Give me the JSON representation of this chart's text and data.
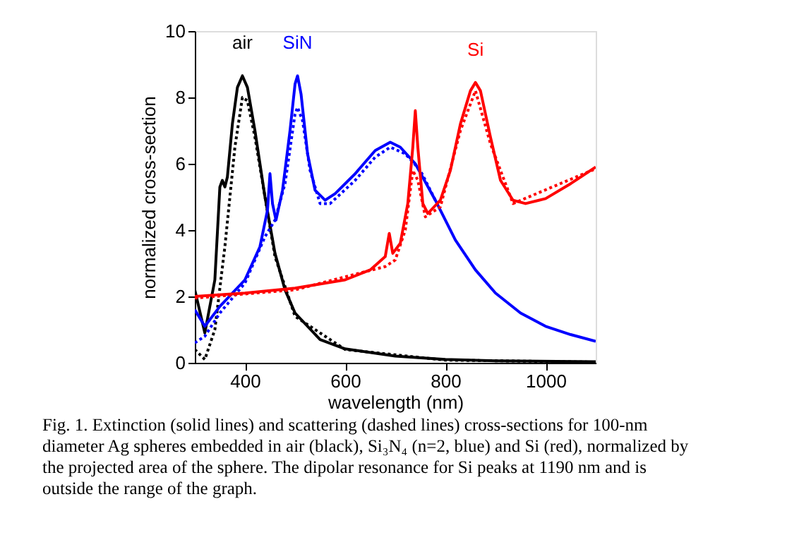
{
  "chart_data": {
    "type": "line",
    "xlabel": "wavelength (nm)",
    "ylabel": "normalized cross-section",
    "xlim": [
      300,
      1100
    ],
    "ylim": [
      0,
      10
    ],
    "xticks": [
      400,
      600,
      800,
      1000
    ],
    "yticks": [
      0,
      2,
      4,
      6,
      8,
      10
    ],
    "grid": false,
    "marker": "none",
    "series": [
      {
        "name": "air",
        "color": "#000000",
        "line_style": "solid",
        "x": [
          300,
          320,
          340,
          350,
          355,
          360,
          365,
          375,
          385,
          395,
          405,
          420,
          440,
          460,
          480,
          500,
          550,
          600,
          700,
          800,
          900,
          1100
        ],
        "values": [
          2.2,
          0.9,
          2.5,
          5.3,
          5.5,
          5.3,
          5.6,
          7.2,
          8.3,
          8.65,
          8.3,
          7.0,
          5.0,
          3.3,
          2.2,
          1.5,
          0.7,
          0.42,
          0.2,
          0.1,
          0.06,
          0.03
        ]
      },
      {
        "color": "#000000",
        "line_style": "dotted",
        "x": [
          300,
          320,
          340,
          360,
          380,
          395,
          405,
          420,
          440,
          460,
          500,
          600,
          800,
          1100
        ],
        "values": [
          0.4,
          0.1,
          1.0,
          3.5,
          6.5,
          8.0,
          7.9,
          6.8,
          5.0,
          3.2,
          1.4,
          0.4,
          0.08,
          0.02
        ]
      },
      {
        "name": "SiN",
        "color": "#0000ff",
        "line_style": "solid",
        "x": [
          300,
          320,
          350,
          400,
          430,
          445,
          450,
          455,
          462,
          475,
          490,
          500,
          505,
          512,
          525,
          540,
          560,
          580,
          620,
          660,
          690,
          710,
          740,
          780,
          820,
          860,
          900,
          950,
          1000,
          1050,
          1100
        ],
        "values": [
          1.6,
          1.1,
          1.7,
          2.5,
          3.5,
          4.6,
          5.7,
          4.8,
          4.3,
          5.2,
          7.0,
          8.4,
          8.65,
          8.1,
          6.3,
          5.2,
          4.9,
          5.1,
          5.7,
          6.4,
          6.65,
          6.5,
          6.0,
          4.9,
          3.7,
          2.8,
          2.1,
          1.5,
          1.1,
          0.85,
          0.65
        ]
      },
      {
        "color": "#0000ff",
        "line_style": "dotted",
        "x": [
          300,
          320,
          350,
          400,
          440,
          460,
          480,
          500,
          505,
          515,
          530,
          550,
          570,
          620,
          660,
          690,
          720,
          750,
          780
        ],
        "values": [
          0.6,
          0.8,
          1.5,
          2.4,
          3.8,
          4.3,
          5.4,
          7.5,
          7.7,
          7.3,
          5.8,
          4.8,
          4.8,
          5.5,
          6.2,
          6.5,
          6.3,
          5.8,
          4.9
        ]
      },
      {
        "name": "Si",
        "color": "#ff0000",
        "line_style": "solid",
        "x": [
          300,
          400,
          500,
          600,
          650,
          680,
          688,
          695,
          710,
          725,
          735,
          740,
          745,
          755,
          765,
          790,
          810,
          830,
          850,
          860,
          870,
          890,
          910,
          935,
          960,
          1000,
          1050,
          1100
        ],
        "values": [
          2.0,
          2.1,
          2.25,
          2.5,
          2.8,
          3.2,
          3.9,
          3.3,
          3.6,
          4.8,
          6.5,
          7.6,
          6.5,
          4.8,
          4.5,
          4.9,
          5.8,
          7.2,
          8.2,
          8.45,
          8.2,
          6.8,
          5.5,
          4.9,
          4.8,
          4.95,
          5.4,
          5.9
        ]
      },
      {
        "color": "#ff0000",
        "line_style": "dotted",
        "x": [
          300,
          500,
          680,
          700,
          720,
          735,
          745,
          760,
          790,
          830,
          860,
          890,
          935,
          1100
        ],
        "values": [
          1.95,
          2.2,
          2.9,
          3.1,
          4.0,
          5.8,
          5.5,
          4.4,
          4.7,
          7.0,
          8.2,
          6.6,
          4.8,
          5.85
        ]
      }
    ],
    "annotations": [
      "Fig. 1. Extinction (solid lines) and scattering (dashed lines) cross-sections for 100-nm diameter Ag spheres embedded in air (black), Si₃N₄ (n=2, blue) and Si (red), normalized by the projected area of the sphere. The dipolar resonance for Si peaks at 1190 nm and is outside the range of the graph."
    ]
  }
}
